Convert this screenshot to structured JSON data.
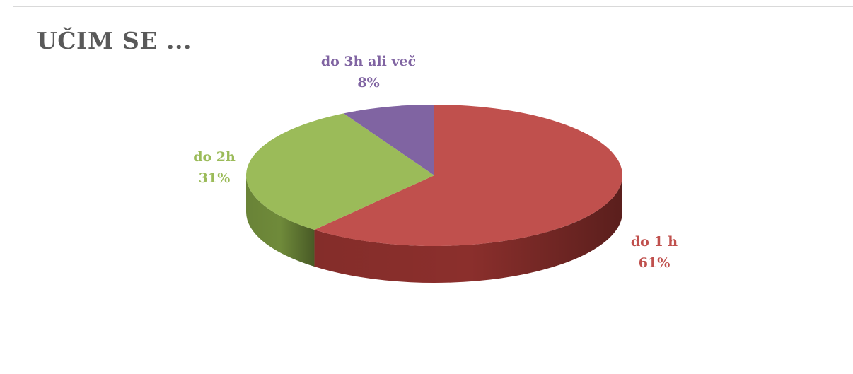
{
  "chart_data": {
    "type": "pie",
    "title": "UČIM SE ...",
    "slices": [
      {
        "label": "do 1 h",
        "value": 61,
        "percent_label": "61%",
        "color": "#c0504d",
        "side_color": "#8b2f2c"
      },
      {
        "label": "do 2h",
        "value": 31,
        "percent_label": "31%",
        "color": "#9bbb59",
        "side_color": "#6f8a3a"
      },
      {
        "label": "do 3h ali več",
        "value": 8,
        "percent_label": "8%",
        "color": "#8064a2",
        "side_color": "#5a4577"
      }
    ],
    "legend": "none",
    "style": "3d"
  }
}
